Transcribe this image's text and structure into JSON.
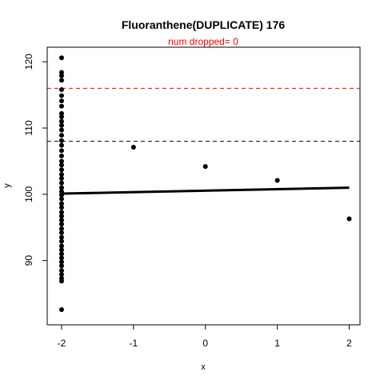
{
  "chart_data": {
    "type": "scatter",
    "title": "Fluoranthene(DUPLICATE) 176",
    "subtitle": "num dropped= 0",
    "xlabel": "x",
    "ylabel": "y",
    "xlim": [
      -2.2,
      2.15
    ],
    "ylim": [
      80.3,
      122.2
    ],
    "x_ticks": [
      -2,
      -1,
      0,
      1,
      2
    ],
    "y_ticks": [
      90,
      100,
      110,
      120
    ],
    "grid": false,
    "colors": {
      "points": "#000000",
      "upper_limit": "#ff0000",
      "lower_limit": "#000000",
      "subtitle": "#ff0000"
    },
    "reference_lines": [
      {
        "y": 116.0,
        "color": "#ff0000",
        "style": "dashed"
      },
      {
        "y": 108.0,
        "color": "#000000",
        "style": "dashed"
      }
    ],
    "trend_line": {
      "x": [
        -2,
        2
      ],
      "y": [
        100.1,
        101.0
      ]
    },
    "points": [
      [
        -2,
        120.6
      ],
      [
        -2,
        118.4
      ],
      [
        -2,
        117.9
      ],
      [
        -2,
        117.2
      ],
      [
        -2,
        115.8
      ],
      [
        -2,
        114.9
      ],
      [
        -2,
        114.1
      ],
      [
        -2,
        113.3
      ],
      [
        -2,
        112.2
      ],
      [
        -2,
        111.7
      ],
      [
        -2,
        111.0
      ],
      [
        -2,
        110.4
      ],
      [
        -2,
        109.7
      ],
      [
        -2,
        108.9
      ],
      [
        -2,
        108.1
      ],
      [
        -2,
        107.4
      ],
      [
        -2,
        106.6
      ],
      [
        -2,
        105.8
      ],
      [
        -2,
        105.0
      ],
      [
        -2,
        104.4
      ],
      [
        -2,
        103.7
      ],
      [
        -2,
        103.0
      ],
      [
        -2,
        102.4
      ],
      [
        -2,
        101.7
      ],
      [
        -2,
        101.0
      ],
      [
        -2,
        100.4
      ],
      [
        -2,
        99.9
      ],
      [
        -2,
        99.3
      ],
      [
        -2,
        98.6
      ],
      [
        -2,
        98.0
      ],
      [
        -2,
        97.3
      ],
      [
        -2,
        96.7
      ],
      [
        -2,
        96.1
      ],
      [
        -2,
        95.5
      ],
      [
        -2,
        94.8
      ],
      [
        -2,
        94.2
      ],
      [
        -2,
        93.5
      ],
      [
        -2,
        92.9
      ],
      [
        -2,
        92.2
      ],
      [
        -2,
        91.6
      ],
      [
        -2,
        91.0
      ],
      [
        -2,
        90.4
      ],
      [
        -2,
        89.8
      ],
      [
        -2,
        89.2
      ],
      [
        -2,
        88.5
      ],
      [
        -2,
        87.9
      ],
      [
        -2,
        87.3
      ],
      [
        -2,
        86.9
      ],
      [
        -2,
        82.6
      ],
      [
        -1,
        107.1
      ],
      [
        0,
        104.2
      ],
      [
        1,
        102.1
      ],
      [
        2,
        96.3
      ]
    ]
  }
}
